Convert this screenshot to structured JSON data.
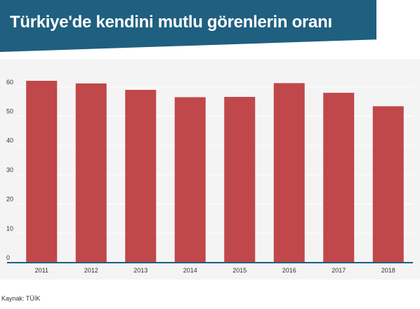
{
  "header": {
    "title": "Türkiye'de kendini mutlu görenlerin oranı"
  },
  "source": {
    "text": "Kaynak: TÜİK"
  },
  "colors": {
    "banner": "#1f5f80",
    "bar": "#c0474a",
    "panel": "#f4f4f4",
    "axis": "#1f5f80",
    "grid": "#ffffff"
  },
  "chart_data": {
    "type": "bar",
    "title": "Türkiye'de kendini mutlu görenlerin oranı",
    "xlabel": "",
    "ylabel": "",
    "categories": [
      "2011",
      "2012",
      "2013",
      "2014",
      "2015",
      "2016",
      "2017",
      "2018"
    ],
    "values": [
      62.1,
      61.2,
      59.0,
      56.5,
      56.6,
      61.3,
      58.0,
      53.4
    ],
    "ylim": [
      0,
      65
    ],
    "yticks": [
      0,
      10,
      20,
      30,
      40,
      50,
      60
    ],
    "grid": true,
    "legend": "none"
  }
}
